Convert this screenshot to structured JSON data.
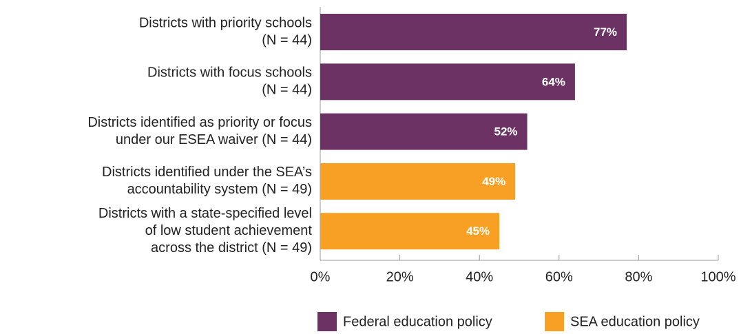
{
  "chart_data": {
    "type": "hbar",
    "categories": [
      [
        "Districts with priority schools",
        "(N = 44)"
      ],
      [
        "Districts with focus schools",
        "(N = 44)"
      ],
      [
        "Districts identified as priority or focus",
        "under our ESEA waiver (N = 44)"
      ],
      [
        "Districts identified under the SEA’s",
        "accountability system (N = 49)"
      ],
      [
        "Districts with a state-specified level",
        "of low student achievement",
        "across the district (N = 49)"
      ]
    ],
    "series": [
      {
        "name": "Federal education policy",
        "color": "#6b3263",
        "values": [
          77,
          64,
          52,
          null,
          null
        ],
        "value_labels": [
          "77%",
          "64%",
          "52%",
          null,
          null
        ]
      },
      {
        "name": "SEA education policy",
        "color": "#f7a024",
        "values": [
          null,
          null,
          null,
          49,
          45
        ],
        "value_labels": [
          null,
          null,
          null,
          "49%",
          "45%"
        ]
      }
    ],
    "xlim": [
      0,
      100
    ],
    "xticks": [
      {
        "value": 0,
        "label": "0%"
      },
      {
        "value": 20,
        "label": "20%"
      },
      {
        "value": 40,
        "label": "40%"
      },
      {
        "value": 60,
        "label": "60%"
      },
      {
        "value": 80,
        "label": "80%"
      },
      {
        "value": 100,
        "label": "100%"
      }
    ],
    "legend": "bottom-right"
  }
}
